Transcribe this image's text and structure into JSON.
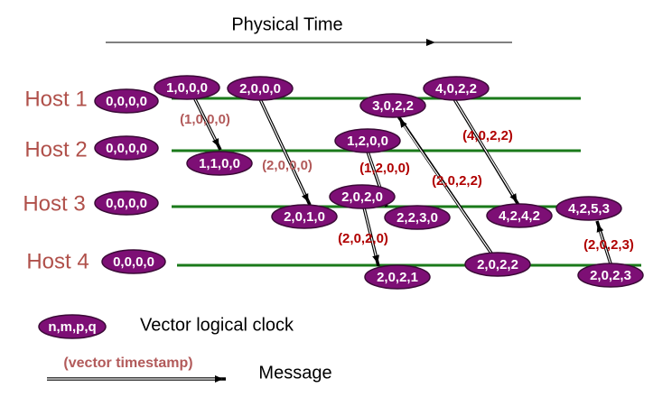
{
  "header": {
    "title": "Physical Time"
  },
  "hosts": [
    {
      "label": "Host 1",
      "initial": "0,0,0,0"
    },
    {
      "label": "Host 2",
      "initial": "0,0,0,0"
    },
    {
      "label": "Host 3",
      "initial": "0,0,0,0"
    },
    {
      "label": "Host 4",
      "initial": "0,0,0,0"
    }
  ],
  "events": [
    {
      "label": "1,0,0,0"
    },
    {
      "label": "2,0,0,0"
    },
    {
      "label": "3,0,2,2"
    },
    {
      "label": "4,0,2,2"
    },
    {
      "label": "1,1,0,0"
    },
    {
      "label": "1,2,0,0"
    },
    {
      "label": "2,0,1,0"
    },
    {
      "label": "2,0,2,0"
    },
    {
      "label": "2,2,3,0"
    },
    {
      "label": "4,2,4,2"
    },
    {
      "label": "4,2,5,3"
    },
    {
      "label": "2,0,2,1"
    },
    {
      "label": "2,0,2,2"
    },
    {
      "label": "2,0,2,3"
    }
  ],
  "messages": [
    {
      "label": "(1,0,0,0)"
    },
    {
      "label": "(2,0,0,0)"
    },
    {
      "label": "(1,2,0,0)"
    },
    {
      "label": "(2,0,2,2)"
    },
    {
      "label": "(4,0,2,2)"
    },
    {
      "label": "(2,0,2,0)"
    },
    {
      "label": "(2,0,2,3)"
    }
  ],
  "legend": {
    "symbol": "n,m,p,q",
    "clock": "Vector logical clock",
    "timestamp": "(vector timestamp)",
    "message": "Message"
  }
}
